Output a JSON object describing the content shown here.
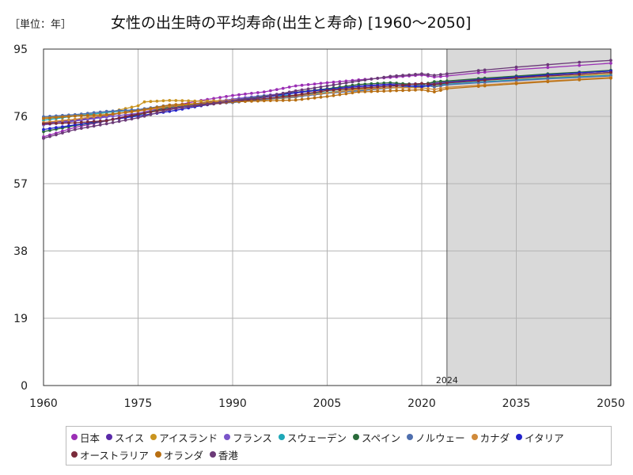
{
  "unit_label": "［単位：年］",
  "chart_data": {
    "type": "line",
    "title": "女性の出生時の平均寿命(出生と寿命) [1960～2050]",
    "xlim": [
      1960,
      2050
    ],
    "ylim": [
      0,
      95
    ],
    "x_ticks": [
      1960,
      1975,
      1990,
      2005,
      2020,
      2035,
      2050
    ],
    "y_ticks": [
      0,
      19,
      38,
      57,
      76,
      95
    ],
    "grid": true,
    "forecast_start": 2024,
    "forecast_label": "2024",
    "legend_position": "bottom",
    "series": [
      {
        "name": "日本",
        "color": "#9b2fb5",
        "points": [
          [
            1960,
            70.2
          ],
          [
            1965,
            72.9
          ],
          [
            1970,
            74.7
          ],
          [
            1975,
            76.9
          ],
          [
            1980,
            78.8
          ],
          [
            1985,
            80.5
          ],
          [
            1990,
            81.9
          ],
          [
            1995,
            82.9
          ],
          [
            2000,
            84.6
          ],
          [
            2005,
            85.5
          ],
          [
            2010,
            86.3
          ],
          [
            2015,
            87.0
          ],
          [
            2020,
            87.7
          ],
          [
            2022,
            87.1
          ],
          [
            2024,
            87.4
          ],
          [
            2030,
            88.5
          ],
          [
            2035,
            89.2
          ],
          [
            2040,
            89.8
          ],
          [
            2045,
            90.4
          ],
          [
            2050,
            91.0
          ]
        ]
      },
      {
        "name": "スイス",
        "color": "#5a2aa8",
        "points": [
          [
            1960,
            74.1
          ],
          [
            1965,
            74.9
          ],
          [
            1970,
            76.1
          ],
          [
            1975,
            77.9
          ],
          [
            1980,
            78.8
          ],
          [
            1985,
            79.8
          ],
          [
            1990,
            80.8
          ],
          [
            1995,
            81.7
          ],
          [
            2000,
            82.6
          ],
          [
            2005,
            83.7
          ],
          [
            2010,
            84.6
          ],
          [
            2015,
            85.1
          ],
          [
            2020,
            85.1
          ],
          [
            2022,
            85.4
          ],
          [
            2024,
            85.8
          ],
          [
            2030,
            86.6
          ],
          [
            2035,
            87.2
          ],
          [
            2040,
            87.8
          ],
          [
            2045,
            88.3
          ],
          [
            2050,
            88.8
          ]
        ]
      },
      {
        "name": "アイスランド",
        "color": "#c9941f",
        "points": [
          [
            1960,
            75.7
          ],
          [
            1965,
            76.2
          ],
          [
            1970,
            77.0
          ],
          [
            1975,
            79.0
          ],
          [
            1976,
            80.1
          ],
          [
            1980,
            80.5
          ],
          [
            1985,
            80.3
          ],
          [
            1990,
            80.5
          ],
          [
            1995,
            80.7
          ],
          [
            2000,
            81.4
          ],
          [
            2005,
            83.3
          ],
          [
            2010,
            83.8
          ],
          [
            2015,
            84.1
          ],
          [
            2020,
            84.7
          ],
          [
            2022,
            84.5
          ],
          [
            2024,
            85.0
          ],
          [
            2030,
            85.8
          ],
          [
            2035,
            86.4
          ],
          [
            2040,
            87.0
          ],
          [
            2045,
            87.5
          ],
          [
            2050,
            88.0
          ]
        ]
      },
      {
        "name": "フランス",
        "color": "#7a55c9",
        "points": [
          [
            1960,
            73.6
          ],
          [
            1965,
            74.7
          ],
          [
            1970,
            75.8
          ],
          [
            1975,
            76.9
          ],
          [
            1980,
            78.4
          ],
          [
            1985,
            79.4
          ],
          [
            1990,
            80.9
          ],
          [
            1995,
            81.9
          ],
          [
            2000,
            82.8
          ],
          [
            2005,
            83.8
          ],
          [
            2010,
            84.6
          ],
          [
            2015,
            85.1
          ],
          [
            2020,
            85.2
          ],
          [
            2022,
            85.2
          ],
          [
            2024,
            85.6
          ],
          [
            2030,
            86.3
          ],
          [
            2035,
            86.9
          ],
          [
            2040,
            87.4
          ],
          [
            2045,
            87.9
          ],
          [
            2050,
            88.4
          ]
        ]
      },
      {
        "name": "スウェーデン",
        "color": "#1ea8b8",
        "points": [
          [
            1960,
            74.9
          ],
          [
            1965,
            76.1
          ],
          [
            1970,
            77.1
          ],
          [
            1975,
            77.9
          ],
          [
            1980,
            78.8
          ],
          [
            1985,
            79.7
          ],
          [
            1990,
            80.4
          ],
          [
            1995,
            81.7
          ],
          [
            2000,
            82.0
          ],
          [
            2005,
            82.8
          ],
          [
            2010,
            83.5
          ],
          [
            2015,
            84.0
          ],
          [
            2020,
            84.3
          ],
          [
            2022,
            84.9
          ],
          [
            2024,
            85.1
          ],
          [
            2030,
            85.8
          ],
          [
            2035,
            86.3
          ],
          [
            2040,
            86.8
          ],
          [
            2045,
            87.2
          ],
          [
            2050,
            87.6
          ]
        ]
      },
      {
        "name": "スペイン",
        "color": "#2a6b3a",
        "points": [
          [
            1960,
            71.7
          ],
          [
            1965,
            73.4
          ],
          [
            1970,
            74.8
          ],
          [
            1975,
            76.4
          ],
          [
            1980,
            78.6
          ],
          [
            1985,
            79.6
          ],
          [
            1990,
            80.4
          ],
          [
            1995,
            81.6
          ],
          [
            2000,
            82.8
          ],
          [
            2005,
            83.8
          ],
          [
            2010,
            85.0
          ],
          [
            2015,
            85.5
          ],
          [
            2020,
            84.9
          ],
          [
            2022,
            85.8
          ],
          [
            2024,
            86.0
          ],
          [
            2030,
            86.8
          ],
          [
            2035,
            87.4
          ],
          [
            2040,
            88.0
          ],
          [
            2045,
            88.5
          ],
          [
            2050,
            89.0
          ]
        ]
      },
      {
        "name": "ノルウェー",
        "color": "#4f6fae",
        "points": [
          [
            1960,
            75.9
          ],
          [
            1965,
            76.5
          ],
          [
            1970,
            77.4
          ],
          [
            1975,
            77.9
          ],
          [
            1980,
            79.2
          ],
          [
            1985,
            79.6
          ],
          [
            1990,
            79.9
          ],
          [
            1995,
            80.8
          ],
          [
            2000,
            81.5
          ],
          [
            2005,
            82.5
          ],
          [
            2010,
            83.2
          ],
          [
            2015,
            84.0
          ],
          [
            2020,
            84.9
          ],
          [
            2022,
            84.3
          ],
          [
            2024,
            84.9
          ],
          [
            2030,
            85.6
          ],
          [
            2035,
            86.1
          ],
          [
            2040,
            86.6
          ],
          [
            2045,
            87.0
          ],
          [
            2050,
            87.4
          ]
        ]
      },
      {
        "name": "カナダ",
        "color": "#d08a3a",
        "points": [
          [
            1960,
            74.3
          ],
          [
            1965,
            75.2
          ],
          [
            1970,
            76.4
          ],
          [
            1975,
            77.5
          ],
          [
            1980,
            78.8
          ],
          [
            1985,
            79.7
          ],
          [
            1990,
            80.6
          ],
          [
            1995,
            81.0
          ],
          [
            2000,
            81.8
          ],
          [
            2005,
            82.6
          ],
          [
            2010,
            83.6
          ],
          [
            2015,
            84.1
          ],
          [
            2020,
            84.1
          ],
          [
            2022,
            83.6
          ],
          [
            2024,
            84.2
          ],
          [
            2030,
            84.9
          ],
          [
            2035,
            85.5
          ],
          [
            2040,
            86.0
          ],
          [
            2045,
            86.5
          ],
          [
            2050,
            87.0
          ]
        ]
      },
      {
        "name": "イタリア",
        "color": "#2222cc",
        "points": [
          [
            1960,
            72.3
          ],
          [
            1965,
            73.6
          ],
          [
            1970,
            74.9
          ],
          [
            1975,
            76.1
          ],
          [
            1980,
            77.4
          ],
          [
            1985,
            79.0
          ],
          [
            1990,
            80.3
          ],
          [
            1995,
            81.4
          ],
          [
            2000,
            82.7
          ],
          [
            2005,
            83.6
          ],
          [
            2010,
            84.4
          ],
          [
            2015,
            84.9
          ],
          [
            2020,
            84.4
          ],
          [
            2022,
            85.0
          ],
          [
            2024,
            85.5
          ],
          [
            2030,
            86.4
          ],
          [
            2035,
            87.1
          ],
          [
            2040,
            87.7
          ],
          [
            2045,
            88.3
          ],
          [
            2050,
            88.8
          ]
        ]
      },
      {
        "name": "オーストラリア",
        "color": "#7a2a3a",
        "points": [
          [
            1960,
            73.9
          ],
          [
            1965,
            74.2
          ],
          [
            1970,
            74.8
          ],
          [
            1975,
            76.6
          ],
          [
            1980,
            78.1
          ],
          [
            1985,
            79.2
          ],
          [
            1990,
            80.1
          ],
          [
            1995,
            81.0
          ],
          [
            2000,
            82.0
          ],
          [
            2005,
            83.3
          ],
          [
            2010,
            84.0
          ],
          [
            2015,
            84.5
          ],
          [
            2020,
            85.3
          ],
          [
            2022,
            85.0
          ],
          [
            2024,
            85.4
          ],
          [
            2030,
            86.2
          ],
          [
            2035,
            86.8
          ],
          [
            2040,
            87.4
          ],
          [
            2045,
            87.9
          ],
          [
            2050,
            88.4
          ]
        ]
      },
      {
        "name": "オランダ",
        "color": "#b86f12",
        "points": [
          [
            1960,
            75.4
          ],
          [
            1965,
            76.1
          ],
          [
            1970,
            76.5
          ],
          [
            1975,
            77.6
          ],
          [
            1980,
            79.2
          ],
          [
            1985,
            79.7
          ],
          [
            1990,
            80.1
          ],
          [
            1995,
            80.4
          ],
          [
            2000,
            80.6
          ],
          [
            2005,
            81.6
          ],
          [
            2010,
            82.9
          ],
          [
            2015,
            83.2
          ],
          [
            2020,
            83.5
          ],
          [
            2022,
            82.9
          ],
          [
            2024,
            83.8
          ],
          [
            2030,
            84.6
          ],
          [
            2035,
            85.2
          ],
          [
            2040,
            85.8
          ],
          [
            2045,
            86.3
          ],
          [
            2050,
            86.8
          ]
        ]
      },
      {
        "name": "香港",
        "color": "#6b3a78",
        "points": [
          [
            1960,
            69.8
          ],
          [
            1965,
            72.3
          ],
          [
            1970,
            73.9
          ],
          [
            1975,
            75.6
          ],
          [
            1980,
            77.9
          ],
          [
            1985,
            79.3
          ],
          [
            1990,
            80.4
          ],
          [
            1995,
            81.5
          ],
          [
            2000,
            83.2
          ],
          [
            2005,
            84.6
          ],
          [
            2010,
            86.0
          ],
          [
            2015,
            87.3
          ],
          [
            2020,
            88.0
          ],
          [
            2022,
            87.6
          ],
          [
            2024,
            88.0
          ],
          [
            2030,
            89.1
          ],
          [
            2035,
            89.9
          ],
          [
            2040,
            90.6
          ],
          [
            2045,
            91.3
          ],
          [
            2050,
            91.8
          ]
        ]
      }
    ]
  }
}
